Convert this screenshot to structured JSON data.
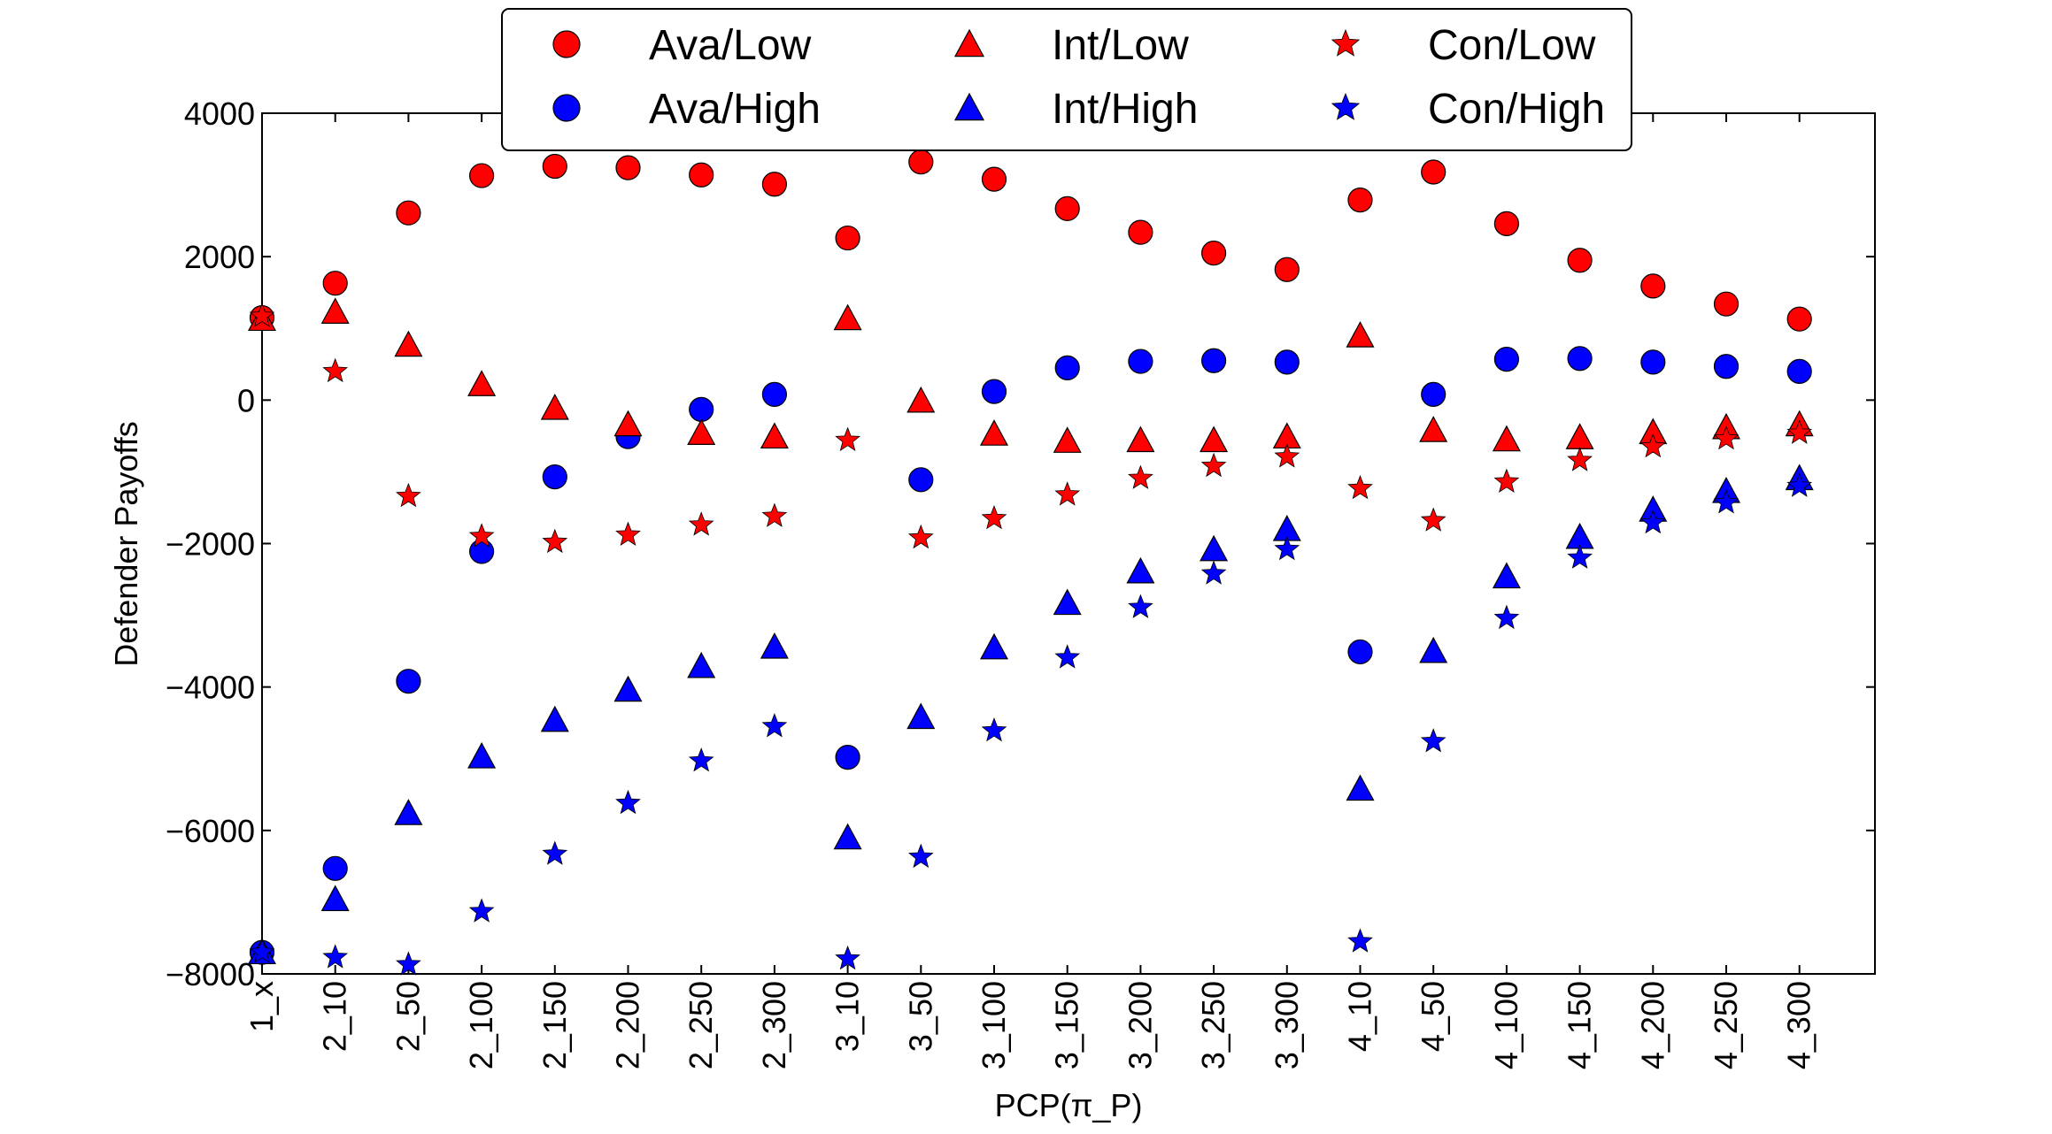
{
  "chart_data": {
    "type": "scatter",
    "xlabel": "PCP(π_P)",
    "ylabel": "Defender Payoffs",
    "ylim": [
      -8000,
      4000
    ],
    "y_ticks": [
      4000,
      2000,
      0,
      -2000,
      -4000,
      -6000,
      -8000
    ],
    "y_tick_labels": [
      "4000",
      "2000",
      "0",
      "−2000",
      "−4000",
      "−6000",
      "−8000"
    ],
    "grid": false,
    "legend_position": "top-center",
    "categories": [
      "1_x",
      "2_10",
      "2_50",
      "2_100",
      "2_150",
      "2_200",
      "2_250",
      "2_300",
      "3_10",
      "3_50",
      "3_100",
      "3_150",
      "3_200",
      "3_250",
      "3_300",
      "4_10",
      "4_50",
      "4_100",
      "4_150",
      "4_200",
      "4_250",
      "4_300"
    ],
    "series": [
      {
        "name": "Ava/Low",
        "marker": "circle",
        "color": "#ff0000",
        "values": [
          1150,
          1630,
          2610,
          3130,
          3260,
          3240,
          3140,
          3010,
          2260,
          3320,
          3080,
          2670,
          2340,
          2050,
          1820,
          2790,
          3180,
          2460,
          1950,
          1590,
          1340,
          1130
        ]
      },
      {
        "name": "Ava/High",
        "marker": "circle",
        "color": "#0000ff",
        "values": [
          -7700,
          -6530,
          -3920,
          -2110,
          -1070,
          -510,
          -130,
          80,
          -4980,
          -1110,
          120,
          450,
          540,
          550,
          530,
          -3510,
          80,
          570,
          580,
          530,
          470,
          400
        ]
      },
      {
        "name": "Int/Low",
        "marker": "triangle",
        "color": "#ff0000",
        "values": [
          1130,
          1230,
          770,
          220,
          -110,
          -340,
          -460,
          -510,
          1140,
          -10,
          -470,
          -570,
          -560,
          -560,
          -510,
          900,
          -420,
          -550,
          -520,
          -450,
          -380,
          -340
        ]
      },
      {
        "name": "Int/High",
        "marker": "triangle",
        "color": "#0000ff",
        "values": [
          -7700,
          -6960,
          -5760,
          -4970,
          -4460,
          -4040,
          -3710,
          -3440,
          -6100,
          -4420,
          -3450,
          -2830,
          -2390,
          -2080,
          -1800,
          -5420,
          -3500,
          -2460,
          -1910,
          -1530,
          -1270,
          -1090
        ]
      },
      {
        "name": "Con/Low",
        "marker": "star",
        "color": "#ff0000",
        "values": [
          1170,
          400,
          -1340,
          -1900,
          -1980,
          -1880,
          -1740,
          -1620,
          -560,
          -1920,
          -1650,
          -1320,
          -1090,
          -920,
          -790,
          -1230,
          -1680,
          -1140,
          -840,
          -650,
          -540,
          -460
        ]
      },
      {
        "name": "Con/High",
        "marker": "star",
        "color": "#0000ff",
        "values": [
          -7700,
          -7770,
          -7870,
          -7130,
          -6330,
          -5620,
          -5030,
          -4550,
          -7790,
          -6370,
          -4610,
          -3590,
          -2890,
          -2420,
          -2080,
          -7550,
          -4760,
          -3040,
          -2200,
          -1710,
          -1430,
          -1200
        ]
      }
    ]
  }
}
